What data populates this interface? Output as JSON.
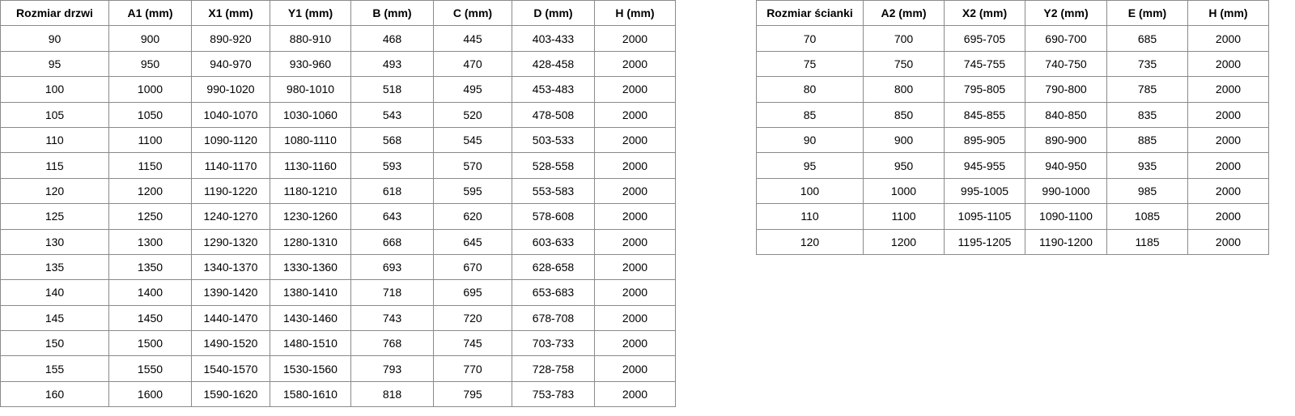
{
  "left": {
    "headers": [
      "Rozmiar drzwi",
      "A1 (mm)",
      "X1 (mm)",
      "Y1 (mm)",
      "B (mm)",
      "C (mm)",
      "D (mm)",
      "H (mm)"
    ],
    "rows": [
      [
        "90",
        "900",
        "890-920",
        "880-910",
        "468",
        "445",
        "403-433",
        "2000"
      ],
      [
        "95",
        "950",
        "940-970",
        "930-960",
        "493",
        "470",
        "428-458",
        "2000"
      ],
      [
        "100",
        "1000",
        "990-1020",
        "980-1010",
        "518",
        "495",
        "453-483",
        "2000"
      ],
      [
        "105",
        "1050",
        "1040-1070",
        "1030-1060",
        "543",
        "520",
        "478-508",
        "2000"
      ],
      [
        "110",
        "1100",
        "1090-1120",
        "1080-1110",
        "568",
        "545",
        "503-533",
        "2000"
      ],
      [
        "115",
        "1150",
        "1140-1170",
        "1130-1160",
        "593",
        "570",
        "528-558",
        "2000"
      ],
      [
        "120",
        "1200",
        "1190-1220",
        "1180-1210",
        "618",
        "595",
        "553-583",
        "2000"
      ],
      [
        "125",
        "1250",
        "1240-1270",
        "1230-1260",
        "643",
        "620",
        "578-608",
        "2000"
      ],
      [
        "130",
        "1300",
        "1290-1320",
        "1280-1310",
        "668",
        "645",
        "603-633",
        "2000"
      ],
      [
        "135",
        "1350",
        "1340-1370",
        "1330-1360",
        "693",
        "670",
        "628-658",
        "2000"
      ],
      [
        "140",
        "1400",
        "1390-1420",
        "1380-1410",
        "718",
        "695",
        "653-683",
        "2000"
      ],
      [
        "145",
        "1450",
        "1440-1470",
        "1430-1460",
        "743",
        "720",
        "678-708",
        "2000"
      ],
      [
        "150",
        "1500",
        "1490-1520",
        "1480-1510",
        "768",
        "745",
        "703-733",
        "2000"
      ],
      [
        "155",
        "1550",
        "1540-1570",
        "1530-1560",
        "793",
        "770",
        "728-758",
        "2000"
      ],
      [
        "160",
        "1600",
        "1590-1620",
        "1580-1610",
        "818",
        "795",
        "753-783",
        "2000"
      ]
    ]
  },
  "right": {
    "headers": [
      "Rozmiar ścianki",
      "A2 (mm)",
      "X2 (mm)",
      "Y2 (mm)",
      "E (mm)",
      "H (mm)"
    ],
    "rows": [
      [
        "70",
        "700",
        "695-705",
        "690-700",
        "685",
        "2000"
      ],
      [
        "75",
        "750",
        "745-755",
        "740-750",
        "735",
        "2000"
      ],
      [
        "80",
        "800",
        "795-805",
        "790-800",
        "785",
        "2000"
      ],
      [
        "85",
        "850",
        "845-855",
        "840-850",
        "835",
        "2000"
      ],
      [
        "90",
        "900",
        "895-905",
        "890-900",
        "885",
        "2000"
      ],
      [
        "95",
        "950",
        "945-955",
        "940-950",
        "935",
        "2000"
      ],
      [
        "100",
        "1000",
        "995-1005",
        "990-1000",
        "985",
        "2000"
      ],
      [
        "110",
        "1100",
        "1095-1105",
        "1090-1100",
        "1085",
        "2000"
      ],
      [
        "120",
        "1200",
        "1195-1205",
        "1190-1200",
        "1185",
        "2000"
      ]
    ]
  }
}
